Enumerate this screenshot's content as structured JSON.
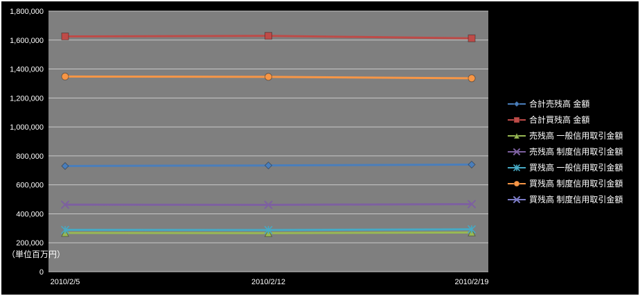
{
  "chart_data": {
    "type": "line",
    "title": "",
    "unit_label": "（単位百万円）",
    "categories": [
      "2010/2/5",
      "2010/2/12",
      "2010/2/19"
    ],
    "ylim": [
      0,
      1800000
    ],
    "ytick_step": 200000,
    "grid": true,
    "legend_position": "right",
    "colors": {
      "chart_bg": "#000000",
      "plot_bg": "#7f7f7f",
      "grid": "#c9c9c9",
      "text": "#ffffff"
    },
    "series": [
      {
        "name": "合計売残高 金額",
        "color": "#4a7ebb",
        "marker": "diamond",
        "values": [
          730000,
          734000,
          740000
        ]
      },
      {
        "name": "合計買残高 金額",
        "color": "#be4b48",
        "marker": "square",
        "values": [
          1625000,
          1629000,
          1612000
        ]
      },
      {
        "name": "売残高 一般信用取引金額",
        "color": "#98b954",
        "marker": "triangle",
        "values": [
          268000,
          267000,
          271000
        ]
      },
      {
        "name": "売残高 制度信用取引金額",
        "color": "#7d60a0",
        "marker": "x",
        "values": [
          463000,
          462000,
          467000
        ]
      },
      {
        "name": "買残高 一般信用取引金額",
        "color": "#46aac5",
        "marker": "star",
        "values": [
          289000,
          288000,
          293000
        ]
      },
      {
        "name": "買残高 制度信用取引金額",
        "color": "#f79646",
        "marker": "circle",
        "values": [
          1348000,
          1346000,
          1336000
        ]
      },
      {
        "name": "買残高 制度信用取引金額",
        "color": "#7c7cc8",
        "marker": "x",
        "values": null
      }
    ]
  }
}
